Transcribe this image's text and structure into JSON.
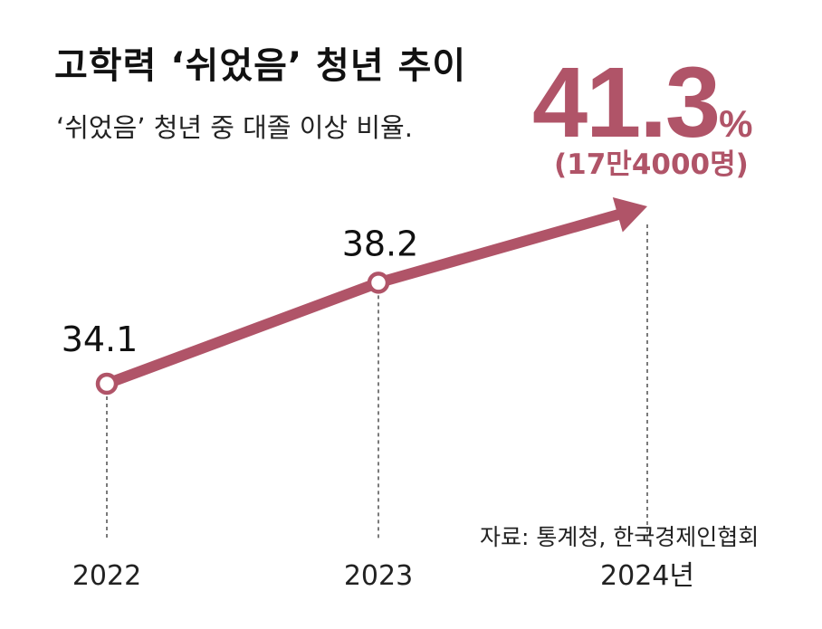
{
  "title": "고학력 ‘쉬었음’ 청년 추이",
  "subtitle": "‘쉬었음’ 청년 중 대졸 이상 비율.",
  "highlight": {
    "value": "41.3",
    "unit": "%",
    "note": "(17만4000명)"
  },
  "source": "자료: 통계청, 한국경제인협회",
  "colors": {
    "accent": "#b05468",
    "text": "#111111"
  },
  "chart_data": {
    "type": "line",
    "x": [
      "2022",
      "2023",
      "2024년"
    ],
    "values": [
      34.1,
      38.2,
      41.3
    ],
    "labels": [
      "34.1",
      "38.2",
      ""
    ],
    "title": "고학력 ‘쉬었음’ 청년 추이",
    "subtitle": "‘쉬었음’ 청년 중 대졸 이상 비율.",
    "ylabel": "",
    "xlabel": "",
    "grid": false,
    "last_point_arrow": true
  }
}
